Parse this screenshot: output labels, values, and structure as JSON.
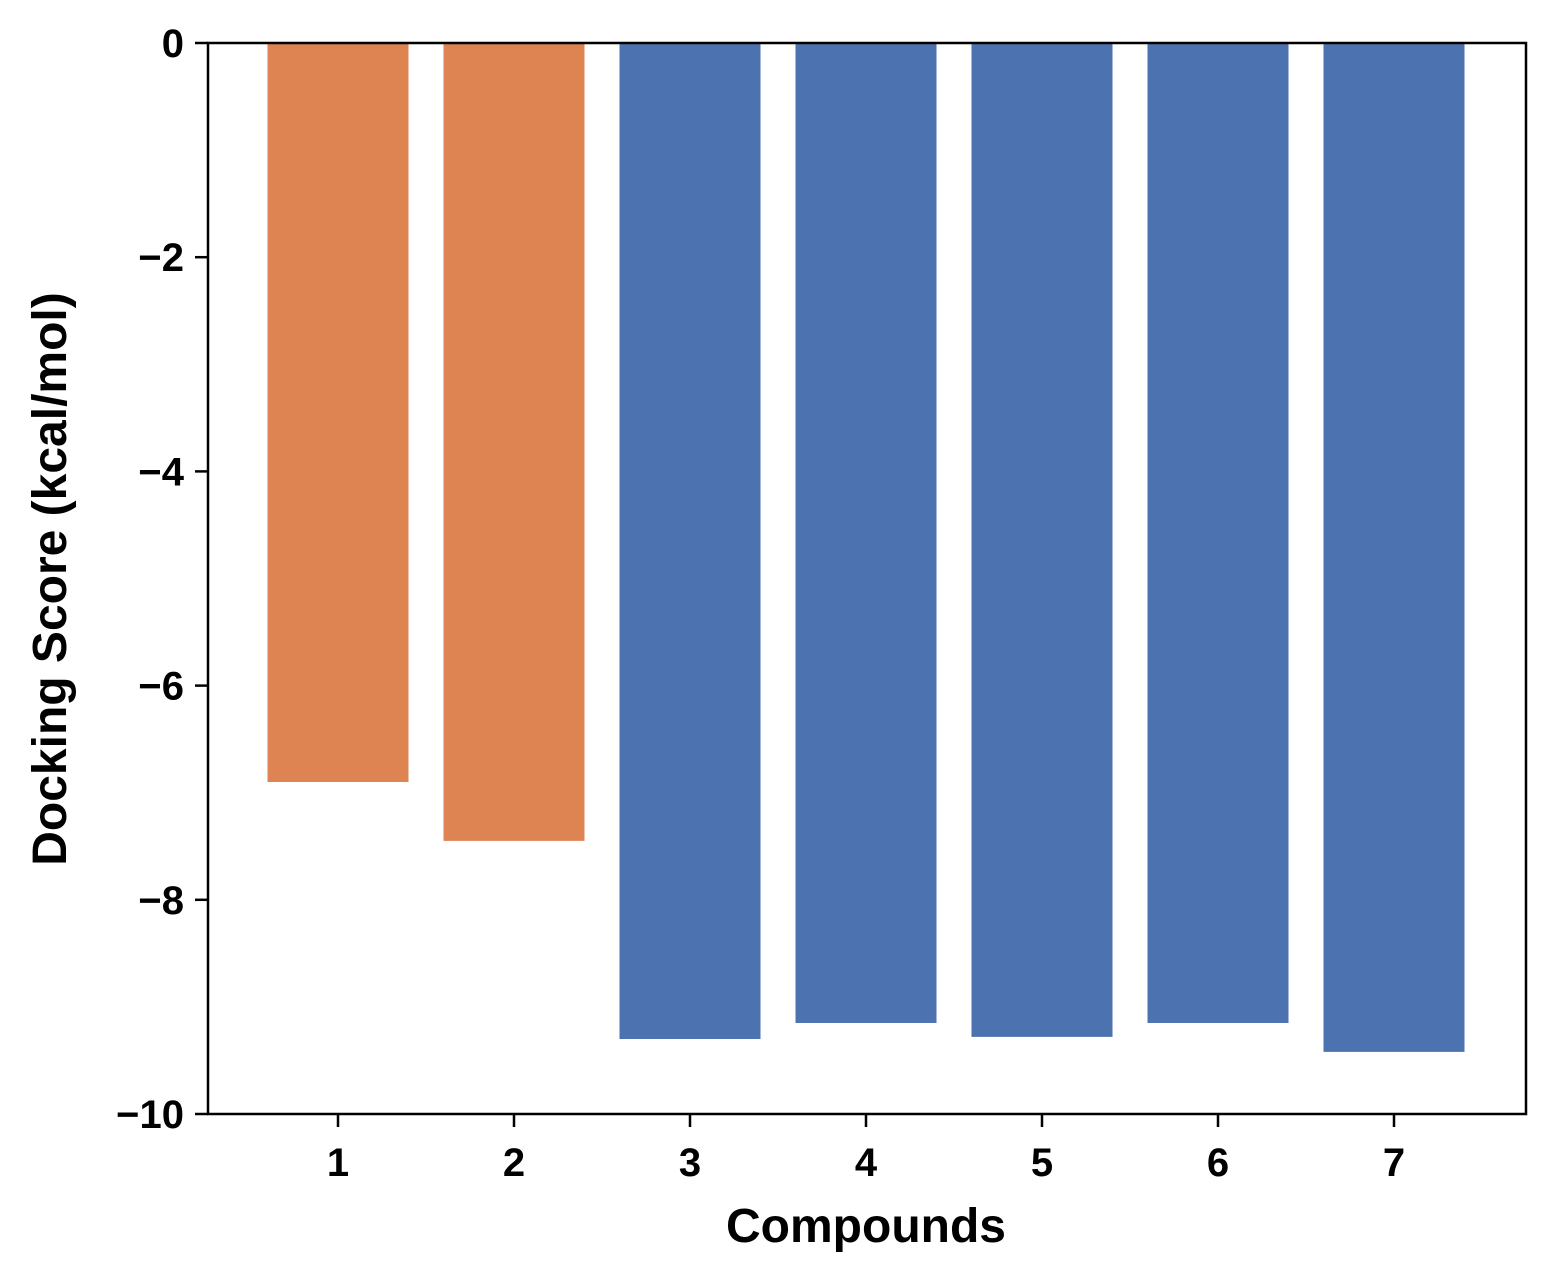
{
  "chart_data": {
    "type": "bar",
    "title": "",
    "xlabel": "Compounds",
    "ylabel": "Docking Score (kcal/mol)",
    "categories": [
      "1",
      "2",
      "3",
      "4",
      "5",
      "6",
      "7"
    ],
    "values": [
      -6.9,
      -7.45,
      -9.3,
      -9.15,
      -9.28,
      -9.15,
      -9.42
    ],
    "bar_colors": [
      "#DD8452",
      "#DD8452",
      "#4C72B0",
      "#4C72B0",
      "#4C72B0",
      "#4C72B0",
      "#4C72B0"
    ],
    "ylim": [
      -10,
      0
    ],
    "yticks": [
      0,
      -2,
      -4,
      -6,
      -8,
      -10
    ],
    "ytick_labels": [
      "0",
      "−2",
      "−4",
      "−6",
      "−8",
      "−10"
    ],
    "grid": false,
    "legend": "none"
  }
}
